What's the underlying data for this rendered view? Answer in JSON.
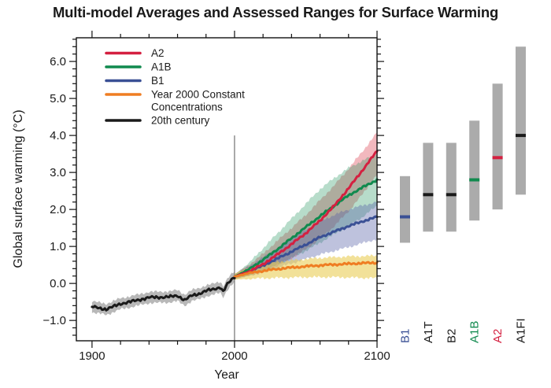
{
  "title": "Multi-model Averages and Assessed Ranges for Surface Warming",
  "colors": {
    "a2_red": "#D42040",
    "a1b_green": "#108A4E",
    "b1_blue": "#3A5095",
    "const_orange": "#EF7D22",
    "century_black": "#1A1A1A",
    "range_bar_gray": "#ABABAB",
    "axis": "#111111"
  },
  "legend": [
    {
      "label_lines": [
        "A2"
      ],
      "color": "#D42040"
    },
    {
      "label_lines": [
        "A1B"
      ],
      "color": "#108A4E"
    },
    {
      "label_lines": [
        "B1"
      ],
      "color": "#3A5095"
    },
    {
      "label_lines": [
        "Year 2000 Constant",
        "Concentrations"
      ],
      "color": "#EF7D22"
    },
    {
      "label_lines": [
        "20th century"
      ],
      "color": "#1A1A1A"
    }
  ],
  "chart_data": {
    "type": "line",
    "title": "Multi-model Averages and Assessed Ranges for Surface Warming",
    "xlabel": "Year",
    "ylabel": "Global surface warming (°C)",
    "xlim": [
      1889,
      2100
    ],
    "ylim": [
      -1.55,
      6.64
    ],
    "grid": false,
    "legend_position": "inside top-left",
    "x_major_ticks": [
      {
        "value": 1900,
        "label": "1900"
      },
      {
        "value": 2000,
        "label": "2000"
      },
      {
        "value": 2100,
        "label": "2100"
      }
    ],
    "x_minor_ticks": [
      1920,
      1940,
      1960,
      1980,
      2020,
      2040,
      2060,
      2080
    ],
    "y_major_ticks": [
      {
        "value": 6,
        "label": "6.0"
      },
      {
        "value": 5,
        "label": "5.0"
      },
      {
        "value": 4,
        "label": "4.0"
      },
      {
        "value": 3,
        "label": "3.0"
      },
      {
        "value": 2,
        "label": "2.0"
      },
      {
        "value": 1,
        "label": "1.0"
      },
      {
        "value": 0,
        "label": "0.0"
      },
      {
        "value": -1,
        "label": "−1.0"
      }
    ],
    "y_minor_step": 0.2,
    "vertical_reference_line": {
      "x": 2000,
      "y_from": -1.55,
      "y_to": 4.0
    },
    "series": [
      {
        "key": "hist",
        "name": "20th century",
        "color": "#1A1A1A",
        "band_color": "rgba(125,125,125,0.55)",
        "line_width": 3,
        "x": [
          1900,
          1910,
          1920,
          1930,
          1940,
          1950,
          1955,
          1960,
          1965,
          1970,
          1975,
          1980,
          1985,
          1990,
          1992,
          1995,
          2000
        ],
        "y": [
          -0.63,
          -0.7,
          -0.55,
          -0.47,
          -0.38,
          -0.37,
          -0.36,
          -0.33,
          -0.45,
          -0.33,
          -0.28,
          -0.2,
          -0.16,
          -0.1,
          -0.22,
          -0.02,
          0.18
        ],
        "band_low": [
          -0.78,
          -0.85,
          -0.7,
          -0.62,
          -0.53,
          -0.52,
          -0.51,
          -0.48,
          -0.6,
          -0.48,
          -0.43,
          -0.35,
          -0.31,
          -0.25,
          -0.37,
          -0.17,
          0.03
        ],
        "band_high": [
          -0.48,
          -0.55,
          -0.4,
          -0.32,
          -0.23,
          -0.22,
          -0.21,
          -0.18,
          -0.3,
          -0.18,
          -0.13,
          -0.05,
          -0.01,
          0.05,
          -0.07,
          0.13,
          0.33
        ]
      },
      {
        "key": "a2",
        "name": "A2",
        "color": "#D42040",
        "band_color": "rgba(224,85,100,0.42)",
        "line_width": 3,
        "x": [
          2000,
          2010,
          2020,
          2030,
          2040,
          2050,
          2060,
          2070,
          2080,
          2090,
          2100
        ],
        "y": [
          0.18,
          0.32,
          0.52,
          0.78,
          1.06,
          1.36,
          1.7,
          2.1,
          2.57,
          3.07,
          3.58
        ],
        "band_low": [
          0.12,
          0.2,
          0.32,
          0.48,
          0.68,
          0.92,
          1.2,
          1.55,
          1.95,
          2.42,
          2.95
        ],
        "band_high": [
          0.25,
          0.5,
          0.8,
          1.15,
          1.5,
          1.85,
          2.25,
          2.65,
          3.1,
          3.58,
          4.08
        ]
      },
      {
        "key": "a1b",
        "name": "A1B",
        "color": "#108A4E",
        "band_color": "rgba(35,150,95,0.33)",
        "line_width": 3,
        "x": [
          2000,
          2010,
          2020,
          2030,
          2040,
          2050,
          2060,
          2070,
          2080,
          2090,
          2100
        ],
        "y": [
          0.18,
          0.38,
          0.64,
          0.92,
          1.22,
          1.52,
          1.82,
          2.1,
          2.38,
          2.6,
          2.8
        ],
        "band_low": [
          0.12,
          0.22,
          0.35,
          0.5,
          0.68,
          0.88,
          1.1,
          1.33,
          1.55,
          1.8,
          2.1
        ],
        "band_high": [
          0.24,
          0.55,
          0.95,
          1.35,
          1.75,
          2.15,
          2.55,
          2.85,
          3.12,
          3.32,
          3.5
        ]
      },
      {
        "key": "b1",
        "name": "B1",
        "color": "#3A5095",
        "band_color": "rgba(85,95,165,0.38)",
        "line_width": 3,
        "x": [
          2000,
          2010,
          2020,
          2030,
          2040,
          2050,
          2060,
          2070,
          2080,
          2090,
          2100
        ],
        "y": [
          0.18,
          0.32,
          0.48,
          0.67,
          0.86,
          1.05,
          1.25,
          1.4,
          1.55,
          1.68,
          1.8
        ],
        "band_low": [
          0.12,
          0.2,
          0.3,
          0.42,
          0.54,
          0.66,
          0.78,
          0.88,
          0.98,
          1.09,
          1.2
        ],
        "band_high": [
          0.24,
          0.46,
          0.7,
          0.95,
          1.2,
          1.45,
          1.68,
          1.85,
          2.0,
          2.11,
          2.2
        ]
      },
      {
        "key": "const",
        "name": "Year 2000 Constant Concentrations",
        "color": "#EF7D22",
        "band_color": "rgba(233,205,85,0.6)",
        "line_width": 3,
        "x": [
          2000,
          2010,
          2020,
          2030,
          2040,
          2050,
          2060,
          2070,
          2080,
          2090,
          2100
        ],
        "y": [
          0.18,
          0.28,
          0.34,
          0.39,
          0.43,
          0.46,
          0.49,
          0.51,
          0.53,
          0.55,
          0.56
        ],
        "band_low": [
          0.1,
          0.12,
          0.14,
          0.15,
          0.16,
          0.17,
          0.17,
          0.17,
          0.16,
          0.15,
          0.14
        ],
        "band_high": [
          0.26,
          0.44,
          0.52,
          0.58,
          0.62,
          0.66,
          0.69,
          0.71,
          0.73,
          0.74,
          0.75
        ]
      }
    ],
    "assessed_ranges": {
      "bar_color": "#ABABAB",
      "label_rotation": -90,
      "bars": [
        {
          "label": "B1",
          "color": "#3A5095",
          "low": 1.1,
          "best": 1.8,
          "high": 2.9
        },
        {
          "label": "A1T",
          "color": "#1A1A1A",
          "low": 1.4,
          "best": 2.4,
          "high": 3.8
        },
        {
          "label": "B2",
          "color": "#1A1A1A",
          "low": 1.4,
          "best": 2.4,
          "high": 3.8
        },
        {
          "label": "A1B",
          "color": "#108A4E",
          "low": 1.7,
          "best": 2.8,
          "high": 4.4
        },
        {
          "label": "A2",
          "color": "#D42040",
          "low": 2.0,
          "best": 3.4,
          "high": 5.4
        },
        {
          "label": "A1FI",
          "color": "#1A1A1A",
          "low": 2.4,
          "best": 4.0,
          "high": 6.4
        }
      ]
    }
  }
}
